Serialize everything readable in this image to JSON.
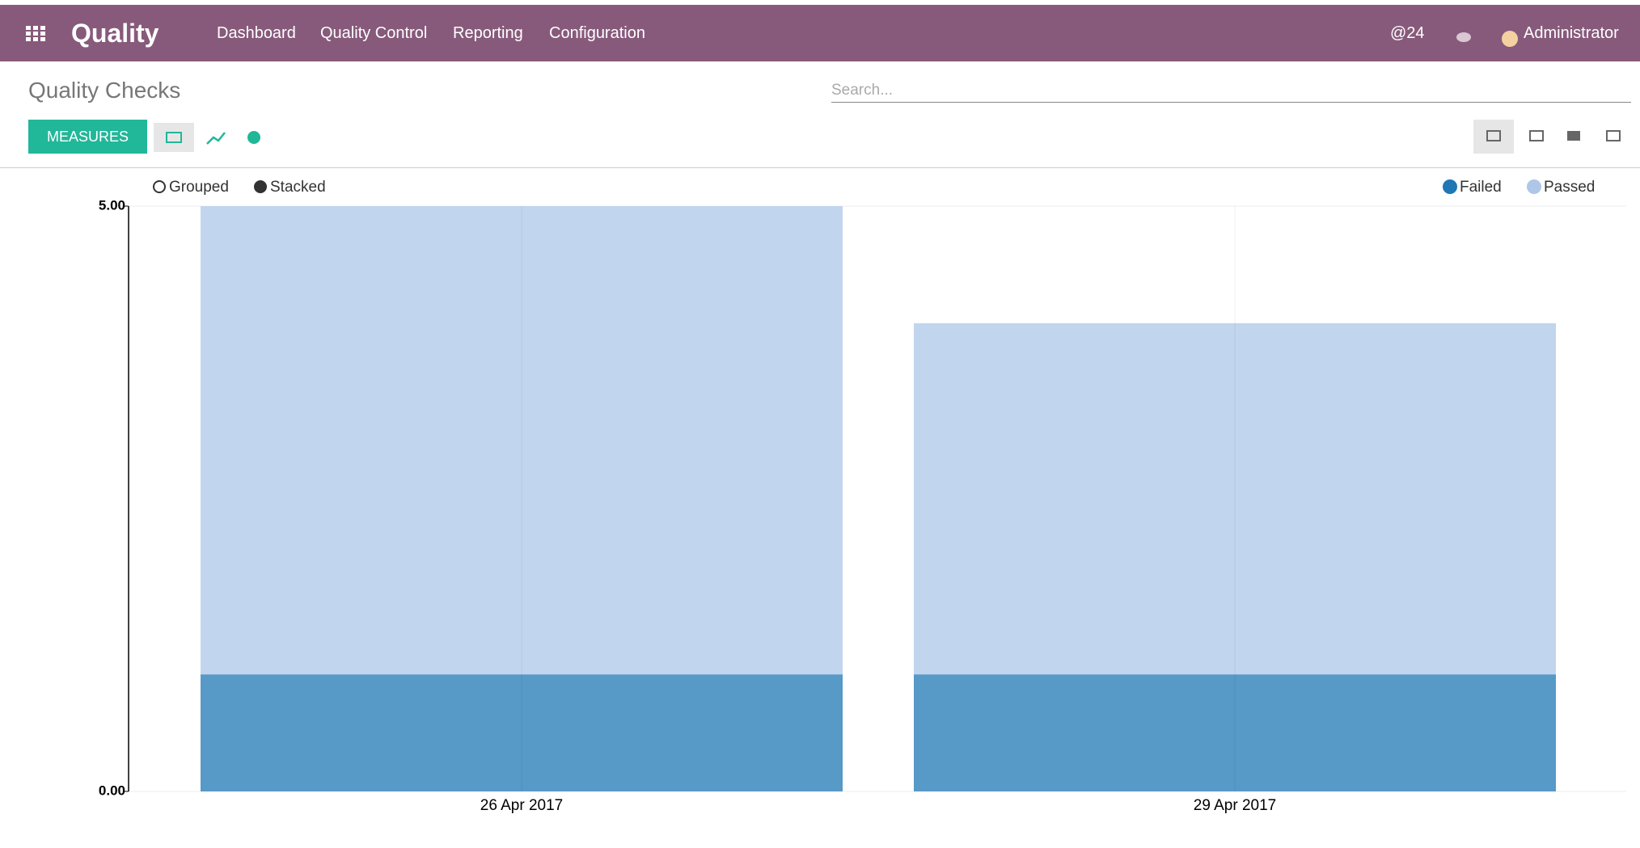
{
  "navbar": {
    "app": "Quality",
    "menu": [
      "Dashboard",
      "Quality Control",
      "Reporting",
      "Configuration"
    ],
    "mentions": "@24",
    "user": "Administrator"
  },
  "control_panel": {
    "title": "Quality Checks",
    "search_placeholder": "Search...",
    "measures": "MEASURES"
  },
  "chart_data": {
    "type": "bar",
    "mode_options": [
      "Grouped",
      "Stacked"
    ],
    "stacked": true,
    "categories": [
      "26 Apr 2017",
      "29 Apr 2017"
    ],
    "series": [
      {
        "name": "Failed",
        "color": "#1f77b4",
        "values": [
          1,
          1
        ]
      },
      {
        "name": "Passed",
        "color": "#aec7e8",
        "values": [
          4,
          3
        ]
      }
    ],
    "ylim": [
      0,
      5
    ],
    "yticks": [
      {
        "value": 0,
        "label": "0.00"
      },
      {
        "value": 5,
        "label": "5.00"
      }
    ],
    "grid": true,
    "legend": "top-right"
  }
}
